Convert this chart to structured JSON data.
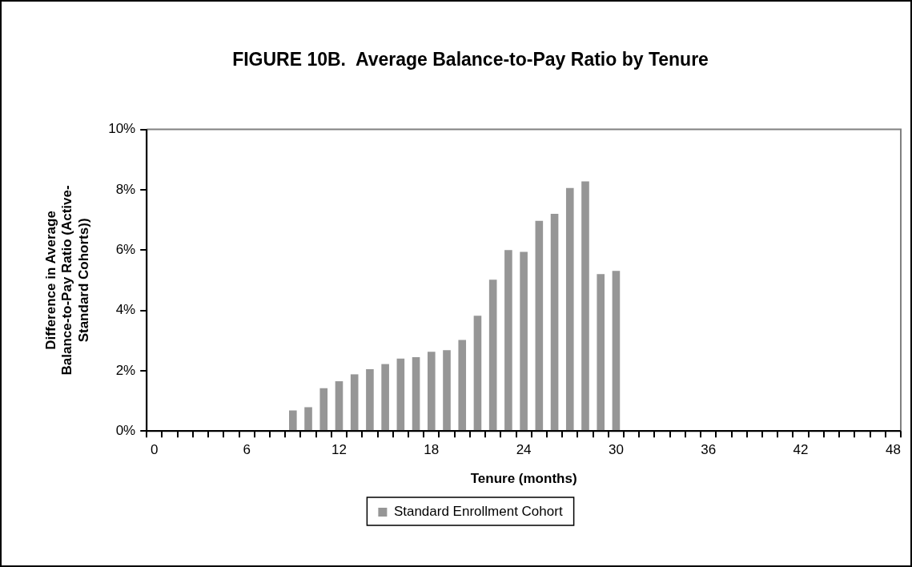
{
  "chart_data": {
    "type": "bar",
    "title": "FIGURE 10B.  Average Balance-to-Pay Ratio by Tenure",
    "xlabel": "Tenure (months)",
    "ylabel": "Difference in Average\nBalance-to-Pay Ratio (Active-\nStandard Cohorts))",
    "categories": [
      "0",
      null,
      null,
      null,
      null,
      null,
      "6",
      null,
      null,
      null,
      null,
      null,
      "12",
      null,
      null,
      null,
      null,
      null,
      "18",
      null,
      null,
      null,
      null,
      null,
      "24",
      null,
      null,
      null,
      null,
      null,
      "30",
      null,
      null,
      null,
      null,
      null,
      "36",
      null,
      null,
      null,
      null,
      null,
      "42",
      null,
      null,
      null,
      null,
      null,
      "48"
    ],
    "series": [
      {
        "name": "Standard Enrollment Cohort",
        "color": "#969696",
        "values": [
          null,
          null,
          null,
          null,
          null,
          null,
          null,
          null,
          null,
          0.68,
          0.79,
          1.42,
          1.65,
          1.88,
          2.05,
          2.22,
          2.4,
          2.45,
          2.63,
          2.68,
          3.02,
          3.82,
          5.02,
          6.0,
          5.94,
          6.97,
          7.2,
          8.06,
          8.28,
          5.2,
          5.31,
          null,
          null,
          null,
          null,
          null,
          null,
          null,
          null,
          null,
          null,
          null,
          null,
          null,
          null,
          null,
          null,
          null,
          null
        ]
      }
    ],
    "ylim": [
      0,
      10
    ],
    "yticks": [
      {
        "value": 0,
        "label": "0%"
      },
      {
        "value": 2,
        "label": "2%"
      },
      {
        "value": 4,
        "label": "4%"
      },
      {
        "value": 6,
        "label": "6%"
      },
      {
        "value": 8,
        "label": "8%"
      },
      {
        "value": 10,
        "label": "10%"
      }
    ],
    "grid": false,
    "legend": "bottom"
  }
}
